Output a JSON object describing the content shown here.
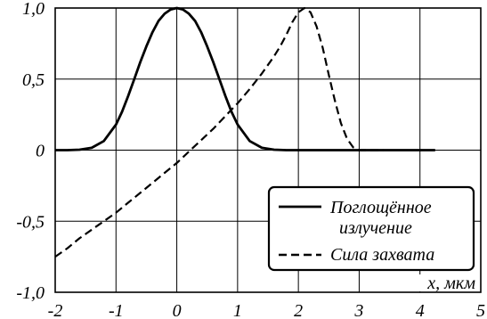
{
  "chart_data": {
    "type": "line",
    "title": "",
    "xlabel": "x, мкм",
    "ylabel": "",
    "xlim": [
      -2,
      5
    ],
    "ylim": [
      -1.0,
      1.0
    ],
    "grid": true,
    "legend_position": "bottom-right",
    "x_ticks": [
      -2,
      -1,
      0,
      1,
      2,
      3,
      4,
      5
    ],
    "x_tick_labels": [
      "-2",
      "-1",
      "0",
      "1",
      "2",
      "3",
      "4",
      "5"
    ],
    "y_ticks": [
      1.0,
      0.5,
      0,
      -0.5,
      -1.0
    ],
    "y_tick_labels": [
      "1,0",
      "0,5",
      "0",
      "-0,5",
      "-1,0"
    ],
    "series": [
      {
        "name": "Поглощённое излучение",
        "legend_lines": [
          "Поглощённое",
          "излучение"
        ],
        "style": "solid",
        "color": "#000000",
        "x": [
          -2.0,
          -1.8,
          -1.6,
          -1.4,
          -1.2,
          -1.0,
          -0.9,
          -0.8,
          -0.7,
          -0.6,
          -0.5,
          -0.4,
          -0.3,
          -0.2,
          -0.1,
          0.0,
          0.1,
          0.2,
          0.3,
          0.4,
          0.5,
          0.6,
          0.7,
          0.8,
          0.9,
          1.0,
          1.2,
          1.4,
          1.6,
          1.8,
          2.0,
          2.5,
          3.0,
          3.5,
          4.0,
          4.25
        ],
        "y": [
          0.0,
          0.0,
          0.003,
          0.016,
          0.064,
          0.18,
          0.27,
          0.38,
          0.5,
          0.62,
          0.73,
          0.83,
          0.91,
          0.96,
          0.99,
          1.0,
          0.99,
          0.96,
          0.91,
          0.83,
          0.73,
          0.62,
          0.5,
          0.38,
          0.27,
          0.18,
          0.064,
          0.016,
          0.003,
          0.0,
          0.0,
          0.0,
          0.0,
          0.0,
          0.0,
          0.0
        ]
      },
      {
        "name": "Сила захвата",
        "legend_lines": [
          "Сила захвата"
        ],
        "style": "dashed",
        "color": "#000000",
        "x": [
          -2.0,
          -1.8,
          -1.6,
          -1.4,
          -1.2,
          -1.0,
          -0.8,
          -0.6,
          -0.4,
          -0.2,
          0.0,
          0.2,
          0.4,
          0.6,
          0.8,
          1.0,
          1.2,
          1.4,
          1.6,
          1.7,
          1.8,
          1.9,
          2.0,
          2.1,
          2.2,
          2.3,
          2.4,
          2.5,
          2.6,
          2.7,
          2.8,
          2.9,
          3.0,
          3.1,
          3.2,
          3.4
        ],
        "y": [
          -0.75,
          -0.69,
          -0.62,
          -0.56,
          -0.5,
          -0.44,
          -0.37,
          -0.3,
          -0.23,
          -0.16,
          -0.09,
          -0.01,
          0.07,
          0.15,
          0.24,
          0.33,
          0.43,
          0.54,
          0.66,
          0.73,
          0.81,
          0.9,
          0.97,
          1.0,
          0.97,
          0.87,
          0.72,
          0.53,
          0.35,
          0.19,
          0.08,
          0.02,
          0.0,
          0.0,
          0.0,
          0.0
        ]
      }
    ]
  }
}
